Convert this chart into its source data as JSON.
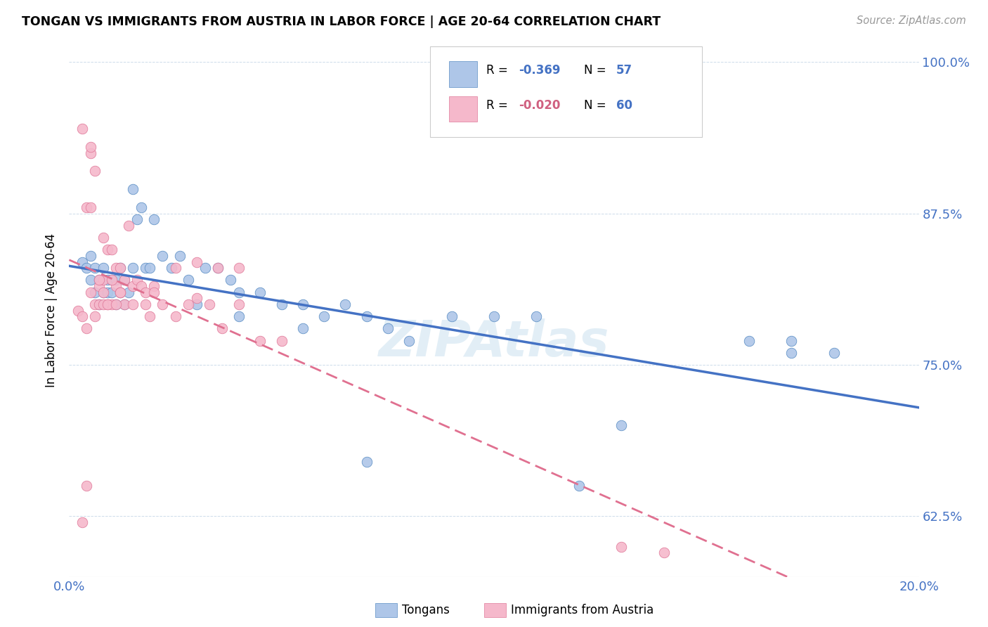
{
  "title": "TONGAN VS IMMIGRANTS FROM AUSTRIA IN LABOR FORCE | AGE 20-64 CORRELATION CHART",
  "source": "Source: ZipAtlas.com",
  "ylabel": "In Labor Force | Age 20-64",
  "xlim": [
    0.0,
    0.2
  ],
  "ylim": [
    0.575,
    1.015
  ],
  "xticks": [
    0.0,
    0.05,
    0.1,
    0.15,
    0.2
  ],
  "xtick_labels": [
    "0.0%",
    "",
    "",
    "",
    "20.0%"
  ],
  "yticks": [
    0.625,
    0.75,
    0.875,
    1.0
  ],
  "ytick_labels": [
    "62.5%",
    "75.0%",
    "87.5%",
    "100.0%"
  ],
  "blue_R": "-0.369",
  "blue_N": "57",
  "pink_R": "-0.020",
  "pink_N": "60",
  "blue_fill": "#aec6e8",
  "pink_fill": "#f5b8cb",
  "blue_edge": "#5b8ec4",
  "pink_edge": "#e07a9a",
  "blue_line": "#4472c4",
  "pink_line": "#e07090",
  "accent_blue": "#4472c4",
  "accent_pink": "#d06080",
  "watermark_color": "#d0e4f0",
  "legend_bottom_labels": [
    "Tongans",
    "Immigrants from Austria"
  ],
  "blue_x": [
    0.003,
    0.004,
    0.005,
    0.005,
    0.006,
    0.006,
    0.007,
    0.007,
    0.008,
    0.008,
    0.009,
    0.009,
    0.01,
    0.01,
    0.011,
    0.011,
    0.012,
    0.012,
    0.013,
    0.013,
    0.014,
    0.015,
    0.015,
    0.016,
    0.017,
    0.018,
    0.019,
    0.02,
    0.022,
    0.024,
    0.026,
    0.028,
    0.03,
    0.032,
    0.035,
    0.038,
    0.04,
    0.045,
    0.05,
    0.055,
    0.06,
    0.065,
    0.07,
    0.075,
    0.08,
    0.09,
    0.1,
    0.11,
    0.13,
    0.16,
    0.17,
    0.17,
    0.18,
    0.04,
    0.055,
    0.07,
    0.12
  ],
  "blue_y": [
    0.835,
    0.83,
    0.82,
    0.84,
    0.81,
    0.83,
    0.82,
    0.8,
    0.83,
    0.81,
    0.81,
    0.82,
    0.82,
    0.81,
    0.82,
    0.8,
    0.81,
    0.83,
    0.8,
    0.82,
    0.81,
    0.895,
    0.83,
    0.87,
    0.88,
    0.83,
    0.83,
    0.87,
    0.84,
    0.83,
    0.84,
    0.82,
    0.8,
    0.83,
    0.83,
    0.82,
    0.81,
    0.81,
    0.8,
    0.8,
    0.79,
    0.8,
    0.79,
    0.78,
    0.77,
    0.79,
    0.79,
    0.79,
    0.7,
    0.77,
    0.77,
    0.76,
    0.76,
    0.79,
    0.78,
    0.67,
    0.65
  ],
  "pink_x": [
    0.002,
    0.003,
    0.003,
    0.004,
    0.004,
    0.005,
    0.005,
    0.005,
    0.006,
    0.006,
    0.007,
    0.007,
    0.008,
    0.008,
    0.008,
    0.009,
    0.009,
    0.01,
    0.01,
    0.011,
    0.011,
    0.012,
    0.012,
    0.013,
    0.013,
    0.014,
    0.015,
    0.016,
    0.017,
    0.018,
    0.019,
    0.02,
    0.022,
    0.025,
    0.028,
    0.03,
    0.033,
    0.036,
    0.04,
    0.045,
    0.003,
    0.004,
    0.005,
    0.006,
    0.007,
    0.008,
    0.009,
    0.01,
    0.011,
    0.012,
    0.015,
    0.018,
    0.02,
    0.025,
    0.03,
    0.035,
    0.04,
    0.05,
    0.13,
    0.14
  ],
  "pink_y": [
    0.795,
    0.945,
    0.79,
    0.88,
    0.78,
    0.925,
    0.88,
    0.81,
    0.8,
    0.91,
    0.8,
    0.815,
    0.82,
    0.855,
    0.81,
    0.8,
    0.845,
    0.845,
    0.8,
    0.83,
    0.815,
    0.81,
    0.83,
    0.82,
    0.8,
    0.865,
    0.815,
    0.82,
    0.815,
    0.8,
    0.79,
    0.815,
    0.8,
    0.79,
    0.8,
    0.835,
    0.8,
    0.78,
    0.8,
    0.77,
    0.62,
    0.65,
    0.93,
    0.79,
    0.82,
    0.8,
    0.8,
    0.82,
    0.8,
    0.81,
    0.8,
    0.81,
    0.81,
    0.83,
    0.805,
    0.83,
    0.83,
    0.77,
    0.6,
    0.595
  ]
}
